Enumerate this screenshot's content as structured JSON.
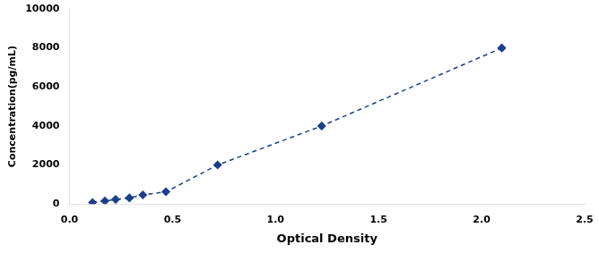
{
  "chart_data": {
    "type": "line",
    "x": [
      0.112,
      0.172,
      0.224,
      0.291,
      0.356,
      0.468,
      0.719,
      1.224,
      2.098
    ],
    "values": [
      78.125,
      156.25,
      234.375,
      312.5,
      468.75,
      625,
      2000,
      4000,
      8000
    ],
    "color": "#1C3F8C",
    "marker": "diamond",
    "line_style": "dashed",
    "xlabel": "Optical Density",
    "ylabel": "Concentration(pg/mL)",
    "xlim": [
      0,
      2.5
    ],
    "xticks": [
      {
        "value": 0,
        "label": "0.0"
      },
      0.5,
      {
        "value": 1,
        "label": "1.0"
      },
      1.5,
      {
        "value": 2,
        "label": "2.0"
      },
      2.5
    ],
    "ylim": [
      0,
      10000
    ],
    "yticks": [
      0,
      2000,
      4000,
      6000,
      8000,
      10000
    ],
    "grid": false
  }
}
